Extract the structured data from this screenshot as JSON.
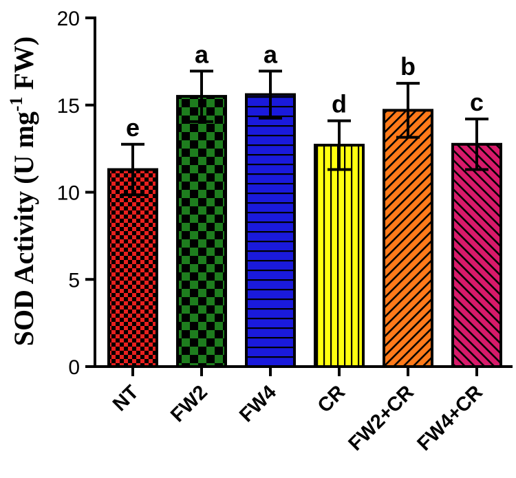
{
  "chart_data": {
    "type": "bar",
    "title": "",
    "xlabel": "",
    "ylabel": "SOD Activity (U mg",
    "ylabel_superscript": "-1",
    "ylabel_suffix": " FW)",
    "ylim": [
      0,
      20
    ],
    "yticks": [
      "0",
      "5",
      "10",
      "15",
      "20"
    ],
    "categories": [
      "NT",
      "FW2",
      "FW4",
      "CR",
      "FW2+CR",
      "FW4+CR"
    ],
    "values": [
      11.3,
      15.5,
      15.6,
      12.7,
      14.7,
      12.75
    ],
    "errors": [
      1.45,
      1.45,
      1.35,
      1.4,
      1.55,
      1.45
    ],
    "significance": [
      "e",
      "a",
      "a",
      "d",
      "b",
      "c"
    ],
    "colors": [
      "#e8201e",
      "#1e7d1e",
      "#1a1adc",
      "#ffff10",
      "#ff7a1a",
      "#d81a6a"
    ],
    "patterns": [
      "check-small",
      "check-large",
      "horizontal",
      "vertical",
      "diagonal-right",
      "diagonal-left"
    ]
  }
}
